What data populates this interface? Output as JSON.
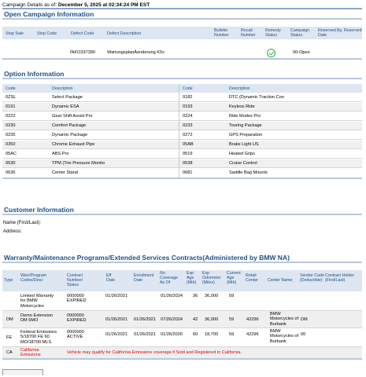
{
  "header": {
    "asof_label": "Campaign Details as of:",
    "asof_value": "December 5, 2025 at 02:34:24 PM EST"
  },
  "open_campaign": {
    "title": "Open Campaign Information",
    "columns": {
      "stop_sale": "Stop Sale",
      "stop_code": "Stop Code",
      "defect_code": "Defect Code",
      "defect_desc": "Defect Description",
      "bulletin": "Bulletin Number",
      "recall": "Recall Number",
      "remedy": "Remedy Status",
      "campaign_status": "Campaign Status",
      "reserved": "Reserved By, Reserved Date"
    },
    "row": {
      "stop_sale": "",
      "stop_code": "",
      "defect_code": "INFO337390",
      "defect_desc": "WartungsplanÄenderung K5x",
      "bulletin": "",
      "recall": "",
      "remedy_icon": "check-circle-icon",
      "campaign_status": "00-Open",
      "reserved": ""
    }
  },
  "options": {
    "title": "Option Information",
    "col_code": "Code",
    "col_desc": "Description",
    "left": [
      {
        "code": "0ZSL",
        "desc": "Select Package"
      },
      {
        "code": "0191",
        "desc": "Dynamic ESA"
      },
      {
        "code": "0222",
        "desc": "Gear Shift Assist Pro"
      },
      {
        "code": "0230",
        "desc": "Comfort Package"
      },
      {
        "code": "0235",
        "desc": "Dynamic Package"
      },
      {
        "code": "0350",
        "desc": "Chrome Exhaust Pipe"
      },
      {
        "code": "05AC",
        "desc": "ABS Pro"
      },
      {
        "code": "0530",
        "desc": "TPM (Tire Pressure Monito"
      },
      {
        "code": "0636",
        "desc": "Center Stand"
      }
    ],
    "right": [
      {
        "code": "0182",
        "desc": "DTC (Dynamic Traction Con"
      },
      {
        "code": "0193",
        "desc": "Keyless Ride"
      },
      {
        "code": "0224",
        "desc": "Ride Modes Pro"
      },
      {
        "code": "0233",
        "desc": "Touring Package"
      },
      {
        "code": "0272",
        "desc": "GPS Preparation"
      },
      {
        "code": "05AB",
        "desc": "Brake Light US"
      },
      {
        "code": "0519",
        "desc": "Heated Grips"
      },
      {
        "code": "0538",
        "desc": "Cruise Control"
      },
      {
        "code": "0681",
        "desc": "Saddle Bag Mounts"
      }
    ]
  },
  "customer": {
    "title": "Customer Information",
    "name_label": "Name (First/Last):",
    "name_value": "",
    "address_label": "Address:",
    "address_value": ""
  },
  "warranty": {
    "title": "Warranty/Maintenance Programs/Extended Services Contracts(Administered by BMW NA)",
    "columns": {
      "type": "Type",
      "program": "Warr/Program Codes/Desc",
      "contract": "Contract Number/ Status",
      "eff": "Eff Date",
      "enroll": "Enrollment Date",
      "nocov": "No Coverage As Of",
      "exp_age": "Exp Age (Mth)",
      "exp_odo": "Exp Odometer (Miles)",
      "cur_age": "Current Age (Mth)",
      "retail": "Retail Center",
      "center": "Center Name",
      "vendor": "Vendor Code (Deductible)",
      "holder": "Contract Holder (First/Last)"
    },
    "rows": [
      {
        "type": "",
        "program": "Limited Warranty for BMW Motorcycles",
        "contract": "0000000 EXPIRED",
        "eff": "01/26/2021",
        "enroll": "",
        "nocov": "01/26/2024",
        "exp_age": "36",
        "exp_odo": "36,000",
        "cur_age": "59",
        "retail": "",
        "center": "",
        "vendor": "",
        "holder": ""
      },
      {
        "type": "DM",
        "program": "Demo Extension DM 6MO",
        "contract": "0000000 EXPIRED",
        "eff": "01/26/2021",
        "enroll": "01/26/2021",
        "nocov": "07/26/2024",
        "exp_age": "42",
        "exp_odo": "36,000",
        "cur_age": "59",
        "retail": "42296",
        "center": "BMW Motorcycles of Burbank",
        "vendor": "DM",
        "holder": ""
      },
      {
        "type": "FE",
        "program": "Federal Emissions 5/18700 FE 60 MO/18700 MLS",
        "contract": "0000000 ACTIVE",
        "eff": "01/26/2021",
        "enroll": "01/26/2021",
        "nocov": "01/26/2026",
        "exp_age": "60",
        "exp_odo": "18,700",
        "cur_age": "59",
        "retail": "42296",
        "center": "BMW Motorcycles of Burbank",
        "vendor": "00",
        "holder": ""
      },
      {
        "type": "CA",
        "program": "California Emissions",
        "notice": "Vehicle may qualify for California Emissions coverage if Sold and Registered in California."
      }
    ]
  }
}
